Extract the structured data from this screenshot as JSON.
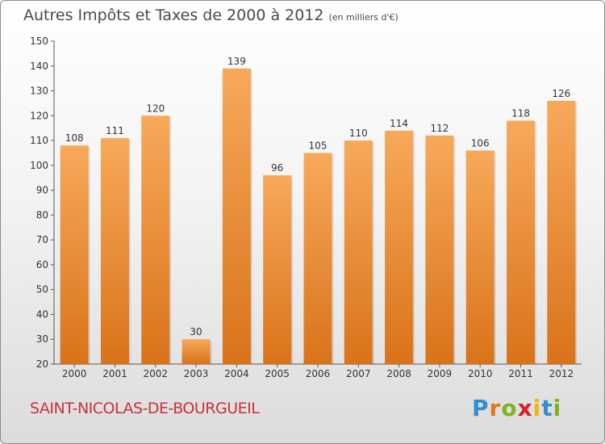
{
  "title": "Autres Impôts et Taxes de 2000 à 2012",
  "unit": "(en milliers d'€)",
  "commune": "SAINT-NICOLAS-DE-BOURGUEIL",
  "brand": {
    "text": "Proxiti",
    "letters": [
      {
        "ch": "P",
        "color": "#2f8fd0"
      },
      {
        "ch": "r",
        "color": "#e4761b"
      },
      {
        "ch": "o",
        "color": "#7ab51d"
      },
      {
        "ch": "x",
        "color": "#d81f26"
      },
      {
        "ch": "i",
        "color": "#f2b500"
      },
      {
        "ch": "t",
        "color": "#2f8fd0"
      },
      {
        "ch": "i",
        "color": "#7ab51d"
      }
    ]
  },
  "colors": {
    "bar_light": "#f7a95a",
    "bar_dark": "#d9731a",
    "title": "#4a4a4a",
    "commune": "#c8323a"
  },
  "chart_data": {
    "type": "bar",
    "categories": [
      "2000",
      "2001",
      "2002",
      "2003",
      "2004",
      "2005",
      "2006",
      "2007",
      "2008",
      "2009",
      "2010",
      "2011",
      "2012"
    ],
    "values": [
      108,
      111,
      120,
      30,
      139,
      96,
      105,
      110,
      114,
      112,
      106,
      118,
      126
    ],
    "ylim": [
      20,
      150
    ],
    "yticks": [
      20,
      30,
      40,
      50,
      60,
      70,
      80,
      90,
      100,
      110,
      120,
      130,
      140,
      150
    ],
    "grid": false
  }
}
